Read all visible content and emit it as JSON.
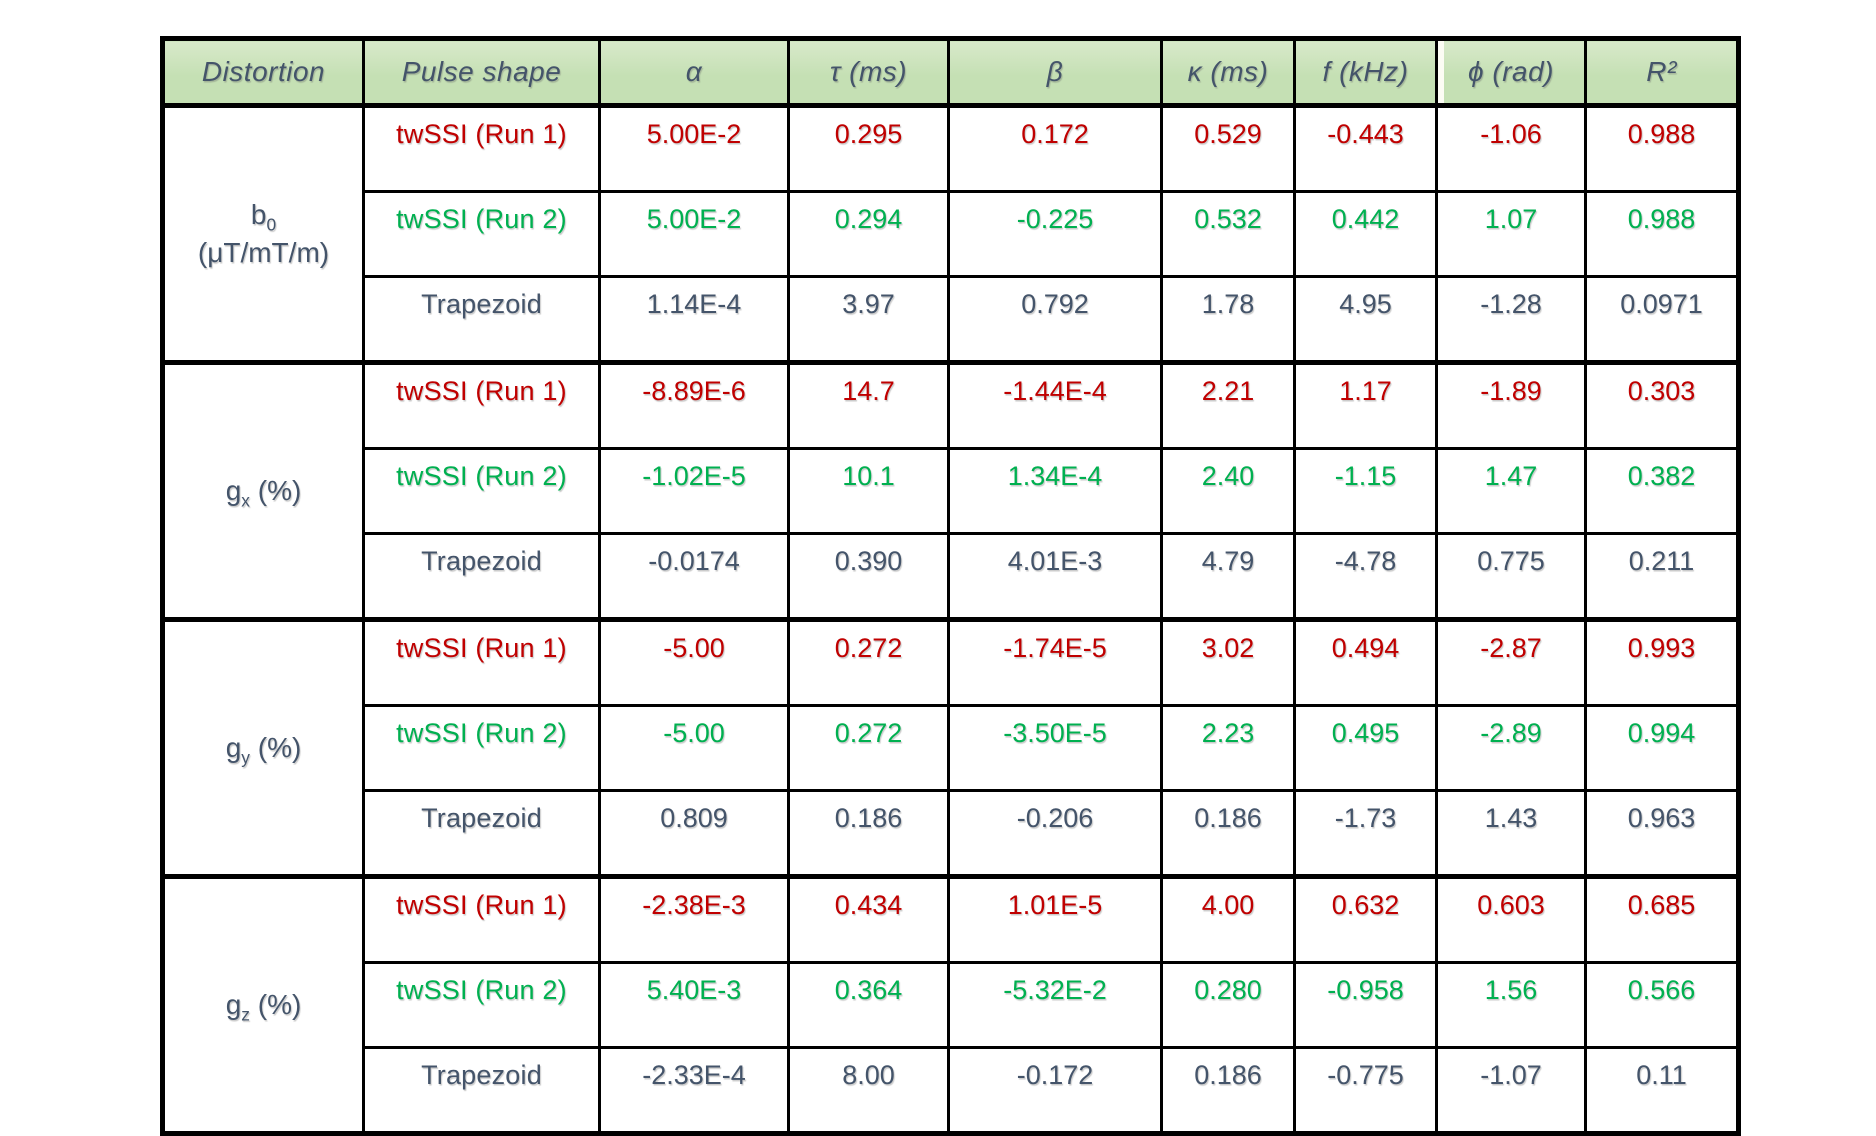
{
  "colors": {
    "red": "#c00000",
    "green": "#00b050",
    "slate": "#44546a",
    "header_bg": "#c5e0b4",
    "border": "#000000"
  },
  "table": {
    "columns": [
      "Distortion",
      "Pulse shape",
      "α",
      "τ (ms)",
      "β",
      "κ (ms)",
      "f (kHz)",
      "ϕ (rad)",
      "R²"
    ],
    "groups": [
      {
        "label": {
          "base": "b",
          "sub": "0",
          "rest": "",
          "line2": "(μT/mT/m)"
        },
        "rows": [
          {
            "pulse": "twSSI (Run 1)",
            "color": "red",
            "values": [
              "5.00E-2",
              "0.295",
              "0.172",
              "0.529",
              "-0.443",
              "-1.06",
              "0.988"
            ]
          },
          {
            "pulse": "twSSI (Run 2)",
            "color": "green",
            "values": [
              "5.00E-2",
              "0.294",
              "-0.225",
              "0.532",
              "0.442",
              "1.07",
              "0.988"
            ]
          },
          {
            "pulse": "Trapezoid",
            "color": "slate",
            "values": [
              "1.14E-4",
              "3.97",
              "0.792",
              "1.78",
              "4.95",
              "-1.28",
              "0.0971"
            ]
          }
        ]
      },
      {
        "label": {
          "base": "g",
          "sub": "x",
          "rest": " (%)",
          "line2": ""
        },
        "rows": [
          {
            "pulse": "twSSI (Run 1)",
            "color": "red",
            "values": [
              "-8.89E-6",
              "14.7",
              "-1.44E-4",
              "2.21",
              "1.17",
              "-1.89",
              "0.303"
            ]
          },
          {
            "pulse": "twSSI (Run 2)",
            "color": "green",
            "values": [
              "-1.02E-5",
              "10.1",
              "1.34E-4",
              "2.40",
              "-1.15",
              "1.47",
              "0.382"
            ]
          },
          {
            "pulse": "Trapezoid",
            "color": "slate",
            "values": [
              "-0.0174",
              "0.390",
              "4.01E-3",
              "4.79",
              "-4.78",
              "0.775",
              "0.211"
            ]
          }
        ]
      },
      {
        "label": {
          "base": "g",
          "sub": "y",
          "rest": " (%)",
          "line2": ""
        },
        "rows": [
          {
            "pulse": "twSSI (Run 1)",
            "color": "red",
            "values": [
              "-5.00",
              "0.272",
              "-1.74E-5",
              "3.02",
              "0.494",
              "-2.87",
              "0.993"
            ]
          },
          {
            "pulse": "twSSI (Run 2)",
            "color": "green",
            "values": [
              "-5.00",
              "0.272",
              "-3.50E-5",
              "2.23",
              "0.495",
              "-2.89",
              "0.994"
            ]
          },
          {
            "pulse": "Trapezoid",
            "color": "slate",
            "values": [
              "0.809",
              "0.186",
              "-0.206",
              "0.186",
              "-1.73",
              "1.43",
              "0.963"
            ]
          }
        ]
      },
      {
        "label": {
          "base": "g",
          "sub": "z",
          "rest": " (%)",
          "line2": ""
        },
        "rows": [
          {
            "pulse": "twSSI (Run 1)",
            "color": "red",
            "values": [
              "-2.38E-3",
              "0.434",
              "1.01E-5",
              "4.00",
              "0.632",
              "0.603",
              "0.685"
            ]
          },
          {
            "pulse": "twSSI (Run 2)",
            "color": "green",
            "values": [
              "5.40E-3",
              "0.364",
              "-5.32E-2",
              "0.280",
              "-0.958",
              "1.56",
              "0.566"
            ]
          },
          {
            "pulse": "Trapezoid",
            "color": "slate",
            "values": [
              "-2.33E-4",
              "8.00",
              "-0.172",
              "0.186",
              "-0.775",
              "-1.07",
              "0.11"
            ]
          }
        ]
      }
    ]
  }
}
